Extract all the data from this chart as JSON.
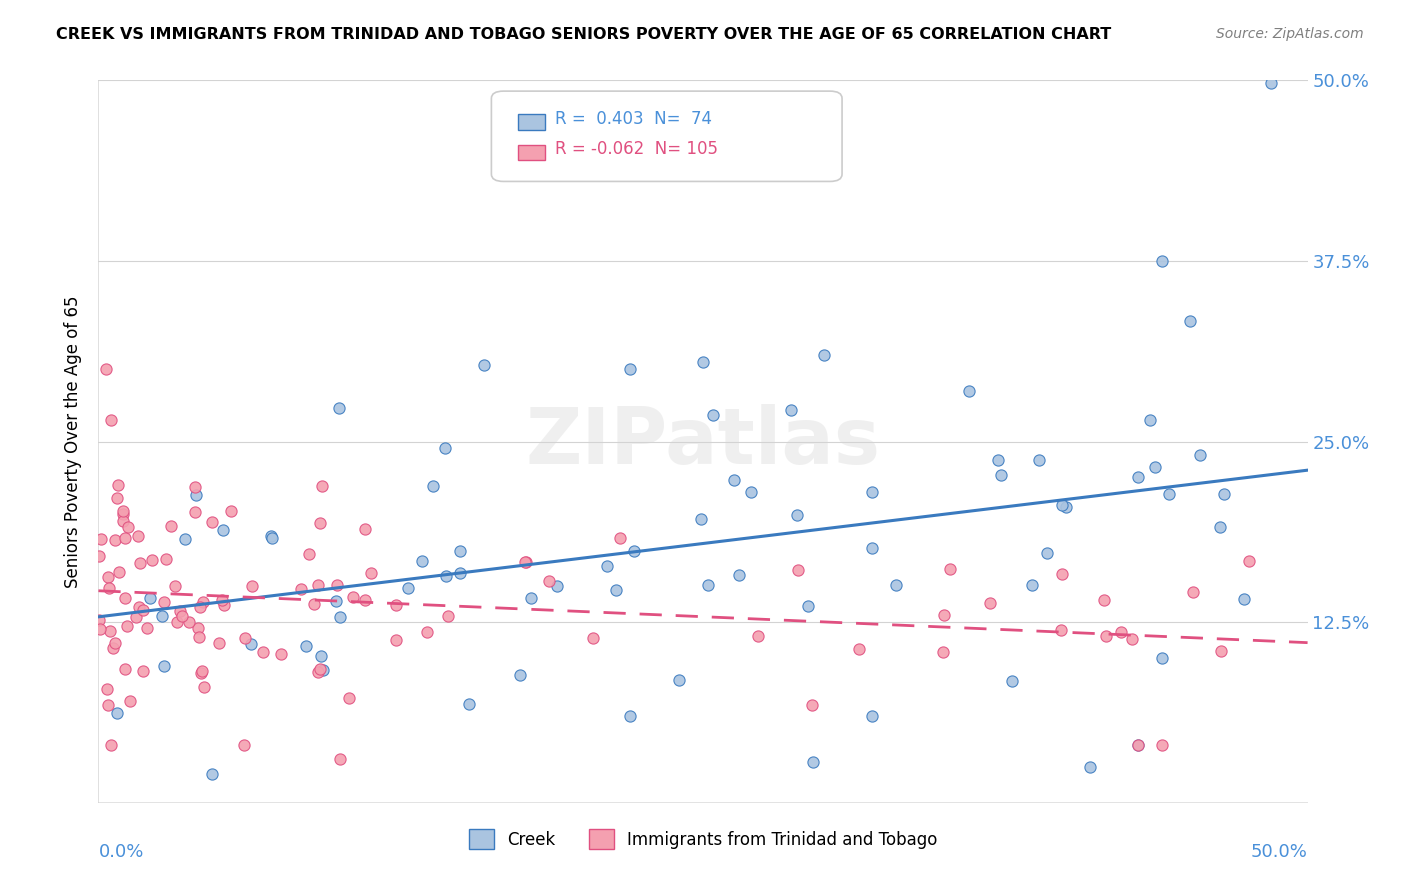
{
  "title": "CREEK VS IMMIGRANTS FROM TRINIDAD AND TOBAGO SENIORS POVERTY OVER THE AGE OF 65 CORRELATION CHART",
  "source": "Source: ZipAtlas.com",
  "ylabel": "Seniors Poverty Over the Age of 65",
  "xmin": 0.0,
  "xmax": 0.5,
  "ymin": 0.0,
  "ymax": 0.5,
  "ytick_vals": [
    0.0,
    0.125,
    0.25,
    0.375,
    0.5
  ],
  "ytick_labels": [
    "",
    "12.5%",
    "25.0%",
    "37.5%",
    "50.0%"
  ],
  "watermark": "ZIPatlas",
  "series1_name": "Creek",
  "series1_color": "#aac4e0",
  "series1_line_color": "#3a7abf",
  "series1_R": 0.403,
  "series1_N": 74,
  "series2_name": "Immigrants from Trinidad and Tobago",
  "series2_color": "#f4a0b0",
  "series2_line_color": "#e05080",
  "series2_R": -0.062,
  "series2_N": 105
}
